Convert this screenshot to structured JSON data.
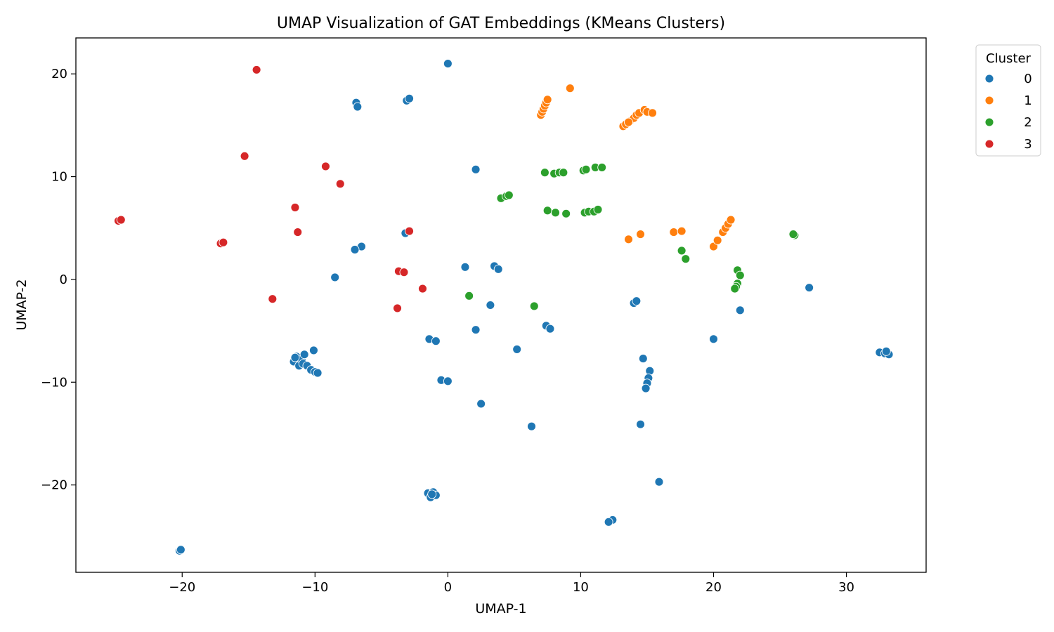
{
  "chart_data": {
    "type": "scatter",
    "title": "UMAP Visualization of GAT Embeddings (KMeans Clusters)",
    "xlabel": "UMAP-1",
    "ylabel": "UMAP-2",
    "xlim": [
      -28,
      36
    ],
    "ylim": [
      -28.5,
      23.5
    ],
    "xticks": [
      -20,
      -10,
      0,
      10,
      20,
      30
    ],
    "yticks": [
      -20,
      -10,
      0,
      10,
      20
    ],
    "xtick_labels": [
      "−20",
      "−10",
      "0",
      "10",
      "20",
      "30"
    ],
    "ytick_labels": [
      "−20",
      "−10",
      "0",
      "10",
      "20"
    ],
    "grid": false,
    "legend": {
      "title": "Cluster",
      "placement": "outside-top-right"
    },
    "series": [
      {
        "name": "0",
        "color": "#1f77b4",
        "points": [
          [
            0.0,
            21.0
          ],
          [
            -6.9,
            17.2
          ],
          [
            -6.8,
            16.8
          ],
          [
            -3.1,
            17.4
          ],
          [
            -2.9,
            17.6
          ],
          [
            2.1,
            10.7
          ],
          [
            -3.2,
            4.5
          ],
          [
            -6.5,
            3.2
          ],
          [
            -7.0,
            2.9
          ],
          [
            -8.5,
            0.2
          ],
          [
            1.3,
            1.2
          ],
          [
            3.5,
            1.3
          ],
          [
            3.8,
            1.0
          ],
          [
            3.2,
            -2.5
          ],
          [
            2.1,
            -4.9
          ],
          [
            -1.4,
            -5.8
          ],
          [
            -0.9,
            -6.0
          ],
          [
            5.2,
            -6.8
          ],
          [
            7.4,
            -4.5
          ],
          [
            7.7,
            -4.8
          ],
          [
            -0.5,
            -9.8
          ],
          [
            0.0,
            -9.9
          ],
          [
            2.5,
            -12.1
          ],
          [
            6.3,
            -14.3
          ],
          [
            -11.6,
            -8.0
          ],
          [
            -11.4,
            -7.5
          ],
          [
            -11.2,
            -8.4
          ],
          [
            -11.0,
            -7.8
          ],
          [
            -10.9,
            -8.2
          ],
          [
            -10.8,
            -7.3
          ],
          [
            -10.6,
            -8.4
          ],
          [
            -10.3,
            -8.8
          ],
          [
            -10.0,
            -9.0
          ],
          [
            -9.8,
            -9.1
          ],
          [
            -10.1,
            -6.9
          ],
          [
            -11.5,
            -7.6
          ],
          [
            -1.5,
            -20.8
          ],
          [
            -1.3,
            -21.2
          ],
          [
            -1.1,
            -20.7
          ],
          [
            -0.9,
            -21.0
          ],
          [
            -1.2,
            -20.9
          ],
          [
            -20.2,
            -26.4
          ],
          [
            -20.1,
            -26.3
          ],
          [
            14.0,
            -2.3
          ],
          [
            14.2,
            -2.1
          ],
          [
            14.7,
            -7.7
          ],
          [
            15.2,
            -8.9
          ],
          [
            15.1,
            -9.6
          ],
          [
            15.0,
            -10.1
          ],
          [
            14.9,
            -10.6
          ],
          [
            14.5,
            -14.1
          ],
          [
            15.9,
            -19.7
          ],
          [
            12.4,
            -23.4
          ],
          [
            12.1,
            -23.6
          ],
          [
            20.0,
            -5.8
          ],
          [
            22.0,
            -3.0
          ],
          [
            27.2,
            -0.8
          ],
          [
            32.5,
            -7.1
          ],
          [
            32.9,
            -7.2
          ],
          [
            33.2,
            -7.3
          ],
          [
            33.0,
            -7.0
          ]
        ]
      },
      {
        "name": "1",
        "color": "#ff7f0e",
        "points": [
          [
            7.0,
            16.0
          ],
          [
            7.1,
            16.3
          ],
          [
            7.2,
            16.6
          ],
          [
            7.3,
            16.9
          ],
          [
            7.4,
            17.2
          ],
          [
            7.5,
            17.5
          ],
          [
            9.2,
            18.6
          ],
          [
            13.2,
            14.9
          ],
          [
            13.4,
            15.1
          ],
          [
            13.7,
            15.4
          ],
          [
            14.0,
            15.7
          ],
          [
            14.2,
            16.0
          ],
          [
            14.4,
            16.2
          ],
          [
            14.8,
            16.5
          ],
          [
            15.0,
            16.3
          ],
          [
            15.4,
            16.2
          ],
          [
            13.6,
            15.3
          ],
          [
            13.6,
            3.9
          ],
          [
            14.5,
            4.4
          ],
          [
            17.0,
            4.6
          ],
          [
            17.6,
            4.7
          ],
          [
            20.0,
            3.2
          ],
          [
            20.3,
            3.8
          ],
          [
            20.7,
            4.6
          ],
          [
            20.9,
            5.0
          ],
          [
            21.1,
            5.4
          ],
          [
            21.3,
            5.8
          ]
        ]
      },
      {
        "name": "2",
        "color": "#2ca02c",
        "points": [
          [
            7.3,
            10.4
          ],
          [
            8.0,
            10.3
          ],
          [
            8.4,
            10.4
          ],
          [
            8.7,
            10.4
          ],
          [
            10.2,
            10.6
          ],
          [
            10.4,
            10.7
          ],
          [
            11.1,
            10.9
          ],
          [
            11.6,
            10.9
          ],
          [
            4.0,
            7.9
          ],
          [
            4.4,
            8.1
          ],
          [
            4.6,
            8.2
          ],
          [
            7.5,
            6.7
          ],
          [
            8.1,
            6.5
          ],
          [
            8.9,
            6.4
          ],
          [
            10.3,
            6.5
          ],
          [
            10.6,
            6.6
          ],
          [
            11.0,
            6.6
          ],
          [
            11.3,
            6.8
          ],
          [
            1.6,
            -1.6
          ],
          [
            6.5,
            -2.6
          ],
          [
            17.6,
            2.8
          ],
          [
            17.9,
            2.0
          ],
          [
            21.8,
            0.9
          ],
          [
            22.0,
            0.4
          ],
          [
            21.8,
            -0.4
          ],
          [
            21.7,
            -0.7
          ],
          [
            21.6,
            -0.9
          ],
          [
            26.1,
            4.3
          ],
          [
            26.0,
            4.4
          ]
        ]
      },
      {
        "name": "3",
        "color": "#d62728",
        "points": [
          [
            -14.4,
            20.4
          ],
          [
            -15.3,
            12.0
          ],
          [
            -9.2,
            11.0
          ],
          [
            -8.1,
            9.3
          ],
          [
            -11.5,
            7.0
          ],
          [
            -11.3,
            4.6
          ],
          [
            -24.8,
            5.7
          ],
          [
            -24.6,
            5.8
          ],
          [
            -17.1,
            3.5
          ],
          [
            -16.9,
            3.6
          ],
          [
            -2.9,
            4.7
          ],
          [
            -3.7,
            0.8
          ],
          [
            -3.3,
            0.7
          ],
          [
            -1.9,
            -0.9
          ],
          [
            -13.2,
            -1.9
          ],
          [
            -3.8,
            -2.8
          ]
        ]
      }
    ]
  }
}
